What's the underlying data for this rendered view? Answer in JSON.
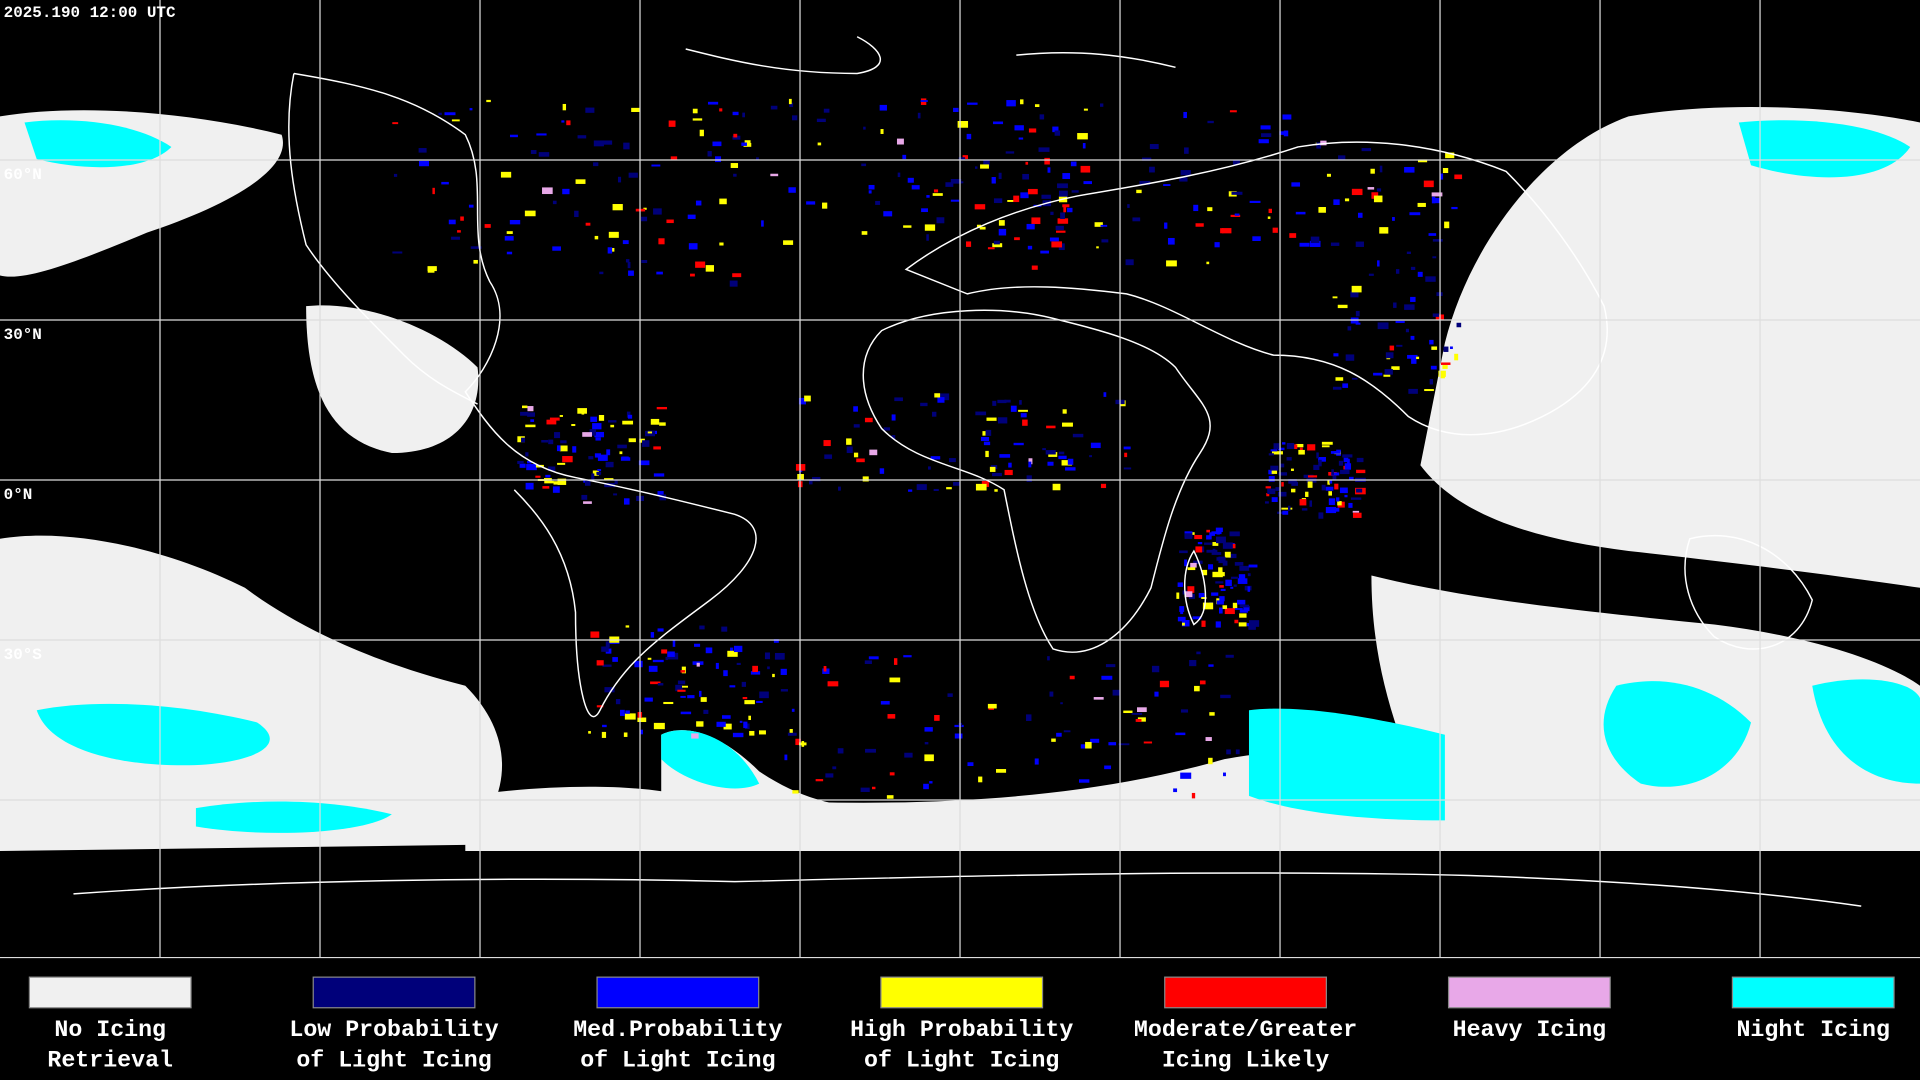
{
  "timestamp": "2025.190 12:00 UTC",
  "latitude_labels": [
    "60°N",
    "30°N",
    "0°N",
    "30°S"
  ],
  "legend": [
    {
      "color": "#f0f0f0",
      "label_lines": [
        "No Icing",
        "Retrieval"
      ]
    },
    {
      "color": "#00007a",
      "label_lines": [
        "Low Probability",
        "of Light Icing"
      ]
    },
    {
      "color": "#0000ff",
      "label_lines": [
        "Med.Probability",
        "of Light Icing"
      ]
    },
    {
      "color": "#ffff00",
      "label_lines": [
        "High Probability",
        "of Light Icing"
      ]
    },
    {
      "color": "#ff0000",
      "label_lines": [
        "Moderate/Greater",
        "Icing Likely"
      ]
    },
    {
      "color": "#e8a8e8",
      "label_lines": [
        "Heavy Icing"
      ]
    },
    {
      "color": "#00ffff",
      "label_lines": [
        "Night Icing"
      ]
    }
  ]
}
